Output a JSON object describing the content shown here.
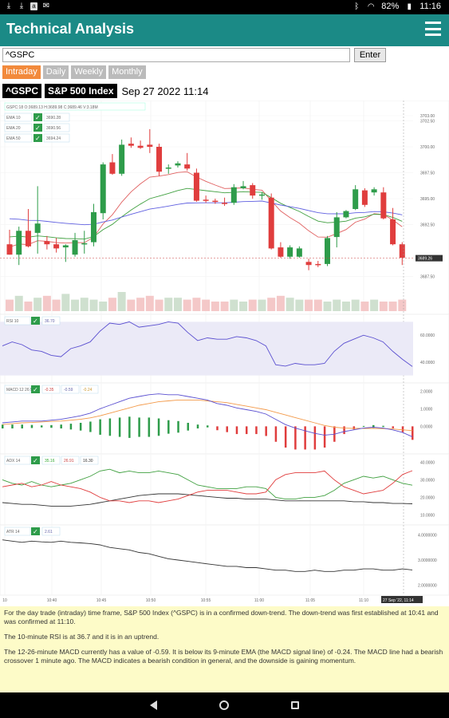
{
  "status_bar": {
    "battery": "82%",
    "time": "11:16",
    "icons": [
      "download-icon",
      "download-icon",
      "app-icon",
      "mail-icon",
      "bluetooth-icon",
      "wifi-icon",
      "battery-icon"
    ]
  },
  "app": {
    "title": "Technical Analysis",
    "menu_icon": "hamburger-menu-icon"
  },
  "search": {
    "value": "^GSPC",
    "enter_label": "Enter"
  },
  "timeframes": [
    {
      "label": "Intraday",
      "active": true
    },
    {
      "label": "Daily",
      "active": false
    },
    {
      "label": "Weekly",
      "active": false
    },
    {
      "label": "Monthly",
      "active": false
    }
  ],
  "quote": {
    "ticker": "^GSPC",
    "name": "S&P 500 Index",
    "datetime": "Sep 27 2022 11:14"
  },
  "chart_data": [
    {
      "type": "candlestick",
      "legend": "GSPC:18 O:3689.13 H:3689.98 C:3689.46 V:3.18M",
      "indicators": [
        {
          "label": "EMA 10",
          "value": "3690.28",
          "checked": true,
          "color": "#e06060"
        },
        {
          "label": "EMA 20",
          "value": "3690.56",
          "checked": true,
          "color": "#40a040"
        },
        {
          "label": "EMA 50",
          "value": "3694.24",
          "checked": true,
          "color": "#6060e0"
        }
      ],
      "y_ticks": [
        "3703.00",
        "3702.50",
        "3700.00",
        "3697.50",
        "3695.00",
        "3692.50",
        "3689.26",
        "3687.50"
      ],
      "last_price": "3689.26",
      "ylim": [
        3686,
        3704
      ],
      "candles": [
        {
          "o": 3690.6,
          "h": 3692.0,
          "l": 3689.6,
          "c": 3689.6
        },
        {
          "o": 3689.6,
          "h": 3692.3,
          "l": 3688.6,
          "c": 3691.9
        },
        {
          "o": 3691.9,
          "h": 3694.0,
          "l": 3690.3,
          "c": 3690.4
        },
        {
          "o": 3691.7,
          "h": 3696.2,
          "l": 3689.7,
          "c": 3692.6
        },
        {
          "o": 3690.9,
          "h": 3691.4,
          "l": 3690.1,
          "c": 3690.6
        },
        {
          "o": 3690.6,
          "h": 3691.2,
          "l": 3689.8,
          "c": 3690.2
        },
        {
          "o": 3690.3,
          "h": 3690.6,
          "l": 3688.9,
          "c": 3690.5
        },
        {
          "o": 3689.6,
          "h": 3691.7,
          "l": 3689.4,
          "c": 3691.0
        },
        {
          "o": 3690.6,
          "h": 3691.9,
          "l": 3689.7,
          "c": 3690.7
        },
        {
          "o": 3690.8,
          "h": 3694.5,
          "l": 3690.4,
          "c": 3693.7
        },
        {
          "o": 3693.6,
          "h": 3698.5,
          "l": 3693.0,
          "c": 3698.3
        },
        {
          "o": 3698.5,
          "h": 3699.3,
          "l": 3697.3,
          "c": 3697.4
        },
        {
          "o": 3697.4,
          "h": 3700.7,
          "l": 3697.2,
          "c": 3700.2
        },
        {
          "o": 3700.3,
          "h": 3700.9,
          "l": 3699.9,
          "c": 3700.1
        },
        {
          "o": 3700.1,
          "h": 3700.6,
          "l": 3699.8,
          "c": 3699.9
        },
        {
          "o": 3700.2,
          "h": 3701.7,
          "l": 3699.4,
          "c": 3700.0
        },
        {
          "o": 3700.0,
          "h": 3700.3,
          "l": 3697.2,
          "c": 3697.6
        },
        {
          "o": 3697.9,
          "h": 3698.3,
          "l": 3697.4,
          "c": 3698.0
        },
        {
          "o": 3698.2,
          "h": 3698.6,
          "l": 3698.0,
          "c": 3698.4
        },
        {
          "o": 3698.3,
          "h": 3699.4,
          "l": 3697.7,
          "c": 3697.9
        },
        {
          "o": 3697.5,
          "h": 3697.9,
          "l": 3694.7,
          "c": 3694.8
        },
        {
          "o": 3694.9,
          "h": 3695.3,
          "l": 3694.6,
          "c": 3694.8
        },
        {
          "o": 3694.8,
          "h": 3695.0,
          "l": 3694.5,
          "c": 3694.7
        },
        {
          "o": 3694.6,
          "h": 3695.1,
          "l": 3694.3,
          "c": 3694.5
        },
        {
          "o": 3694.6,
          "h": 3696.4,
          "l": 3694.4,
          "c": 3696.1
        },
        {
          "o": 3696.0,
          "h": 3696.7,
          "l": 3695.9,
          "c": 3696.2
        },
        {
          "o": 3696.3,
          "h": 3696.5,
          "l": 3695.0,
          "c": 3695.3
        },
        {
          "o": 3695.3,
          "h": 3695.6,
          "l": 3694.9,
          "c": 3695.4
        },
        {
          "o": 3695.1,
          "h": 3695.5,
          "l": 3690.1,
          "c": 3690.2
        },
        {
          "o": 3690.3,
          "h": 3690.8,
          "l": 3689.3,
          "c": 3689.4
        },
        {
          "o": 3689.4,
          "h": 3690.5,
          "l": 3689.2,
          "c": 3690.3
        },
        {
          "o": 3689.4,
          "h": 3690.4,
          "l": 3689.3,
          "c": 3690.2
        },
        {
          "o": 3688.9,
          "h": 3689.2,
          "l": 3688.1,
          "c": 3688.6
        },
        {
          "o": 3688.7,
          "h": 3689.0,
          "l": 3688.4,
          "c": 3688.6
        },
        {
          "o": 3688.7,
          "h": 3691.4,
          "l": 3688.5,
          "c": 3691.2
        },
        {
          "o": 3691.3,
          "h": 3693.7,
          "l": 3690.3,
          "c": 3693.2
        },
        {
          "o": 3693.2,
          "h": 3693.9,
          "l": 3693.1,
          "c": 3693.8
        },
        {
          "o": 3694.0,
          "h": 3696.3,
          "l": 3693.9,
          "c": 3695.9
        },
        {
          "o": 3695.8,
          "h": 3696.0,
          "l": 3694.2,
          "c": 3694.4
        },
        {
          "o": 3695.6,
          "h": 3696.1,
          "l": 3695.3,
          "c": 3695.9
        },
        {
          "o": 3695.6,
          "h": 3696.1,
          "l": 3693.0,
          "c": 3693.1
        },
        {
          "o": 3693.0,
          "h": 3694.1,
          "l": 3690.5,
          "c": 3690.6
        },
        {
          "o": 3690.6,
          "h": 3690.8,
          "l": 3688.6,
          "c": 3689.3
        }
      ],
      "volume": [
        0.6,
        0.8,
        0.5,
        0.7,
        0.8,
        0.6,
        0.9,
        0.6,
        0.7,
        0.6,
        0.5,
        0.7,
        1.0,
        0.6,
        0.7,
        0.8,
        0.6,
        0.7,
        0.7,
        0.6,
        0.7,
        0.6,
        0.5,
        0.5,
        0.6,
        0.5,
        0.6,
        0.6,
        0.7,
        0.8,
        0.7,
        0.6,
        0.6,
        0.6,
        0.5,
        0.6,
        0.5,
        0.6,
        0.5,
        0.6,
        0.5,
        0.5,
        0.6
      ]
    },
    {
      "type": "line",
      "name": "RSI 10",
      "value": "36.70",
      "y_ticks": [
        "60.0000",
        "40.0000"
      ],
      "ylim": [
        28,
        72
      ]
    },
    {
      "type": "histogram",
      "name": "MACD 12 26 9",
      "values_text": [
        "-0.35",
        "-0.59",
        "-0.24"
      ],
      "y_ticks": [
        "2.0000",
        "1.0000",
        "0.0000"
      ],
      "ylim": [
        -1.3,
        2.2
      ]
    },
    {
      "type": "line",
      "name": "ADX 14",
      "values_text": [
        "35.16",
        "26.91",
        "16.30"
      ],
      "y_ticks": [
        "40.0000",
        "30.0000",
        "20.0000",
        "10.0000"
      ],
      "ylim": [
        7,
        42
      ]
    },
    {
      "type": "line",
      "name": "ATR 14",
      "value": "2.61",
      "y_ticks": [
        "4.0000000",
        "3.0000000",
        "2.0000000"
      ],
      "ylim": [
        1.8,
        4.2
      ]
    }
  ],
  "x_axis": {
    "ticks": [
      "10",
      "10:40",
      "10:45",
      "10:50",
      "10:55",
      "11:00",
      "11:05",
      "11:10"
    ],
    "current_label": "27 Sep '22, 11:14"
  },
  "analysis": {
    "paragraphs": [
      "For the day trade (intraday) time frame, S&P 500 Index (^GSPC) is in a confirmed down-trend. The down-trend was first established at 10:41 and was confirmed at 11:10.",
      "The 10-minute RSI is at 36.7 and it is in an uptrend.",
      "The 12-26-minute MACD currently has a value of -0.59. It is below its 9-minute EMA (the MACD signal line) of -0.24. The MACD line had a bearish crossover 1 minute ago. The MACD indicates a bearish condition in general, and the downside is gaining momentum."
    ]
  },
  "nav": {
    "back_icon": "back-icon",
    "home_icon": "home-icon",
    "recents_icon": "recents-icon"
  },
  "colors": {
    "appbar": "#1b8a86",
    "up": "#2e9c4a",
    "down": "#e03d3d",
    "tab_active": "#f28a3c",
    "analysis_bg": "#fdfbc8"
  }
}
